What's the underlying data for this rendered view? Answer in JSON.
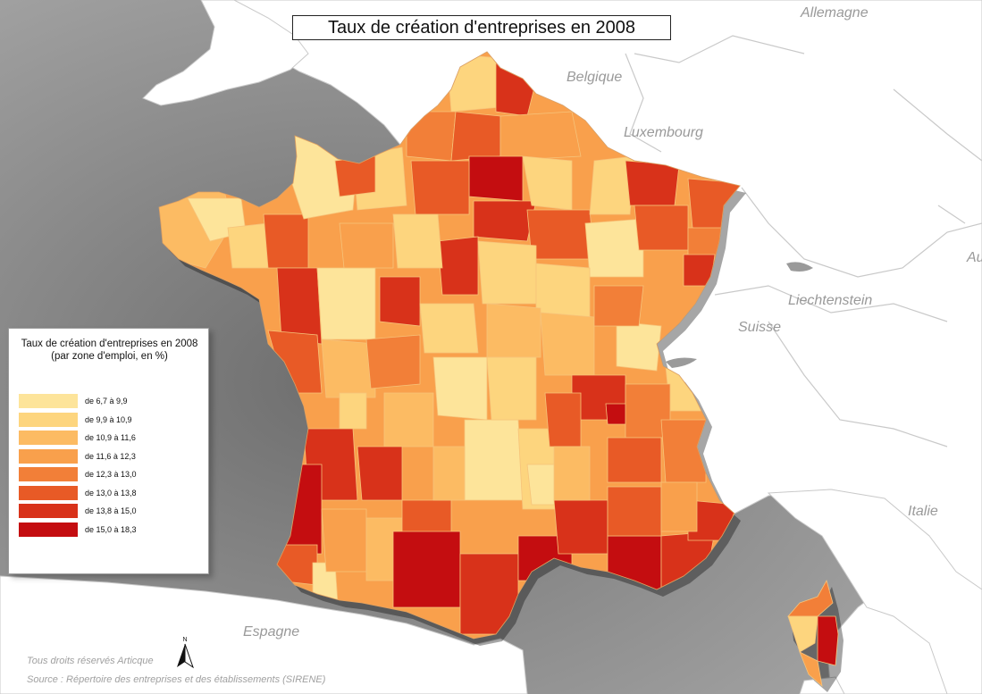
{
  "title": "Taux de création d'entreprises en 2008",
  "countries": {
    "allemagne": "Allemagne",
    "belgique": "Belgique",
    "luxembourg": "Luxembourg",
    "liechtenstein": "Liechtenstein",
    "suisse": "Suisse",
    "italie": "Italie",
    "espagne": "Espagne",
    "autriche_partial": "Au"
  },
  "legend": {
    "title_line1": "Taux de création d'entreprises en 2008",
    "title_line2": "(par zone d'emploi, en %)",
    "classes": [
      {
        "label": "de 6,7 à 9,9",
        "color": "#fde49a"
      },
      {
        "label": "de 9,9 à 10,9",
        "color": "#fdd57e"
      },
      {
        "label": "de 10,9 à 11,6",
        "color": "#fcbb63"
      },
      {
        "label": "de 11,6 à 12,3",
        "color": "#f9a04c"
      },
      {
        "label": "de 12,3 à 13,0",
        "color": "#f27f38"
      },
      {
        "label": "de 13,0 à 13,8",
        "color": "#e85a26"
      },
      {
        "label": "de 13,8 à 15,0",
        "color": "#d8321a"
      },
      {
        "label": "de 15,0 à 18,3",
        "color": "#c40d10"
      }
    ]
  },
  "north_label": "N",
  "footer": {
    "rights": "Tous droits réservés Articque",
    "source": "Source : Répertoire des entreprises et des établissements (SIRENE)"
  },
  "colors": {
    "sea": "#8c8c8c",
    "land_foreign": "#ffffff",
    "border": "#c9c9c9"
  }
}
